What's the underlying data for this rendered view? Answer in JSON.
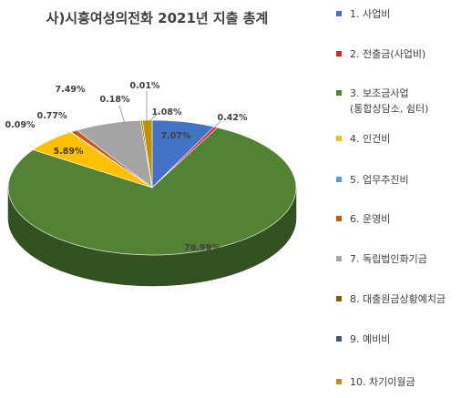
{
  "chart_data": {
    "type": "pie",
    "title": "사)시흥여성의전화 2021년 지출 총계",
    "three_d": true,
    "legend_position": "right",
    "slices": [
      {
        "label": "1. 사업비",
        "value": 7.07,
        "display": "7.07%",
        "color": "#4472C4"
      },
      {
        "label": "2. 전출금(사업비)",
        "value": 0.42,
        "display": "0.42%",
        "color": "#D9262B"
      },
      {
        "label": "3. 보조금사업\n(통합상담소, 쉼터)",
        "value": 76.99,
        "display": "76.99%",
        "color": "#548235"
      },
      {
        "label": "4. 인건비",
        "value": 5.89,
        "display": "5.89%",
        "color": "#FFC000"
      },
      {
        "label": "5. 업무추진비",
        "value": 0.09,
        "display": "0.09%",
        "color": "#5B9BD5"
      },
      {
        "label": "6. 운영비",
        "value": 0.77,
        "display": "0.77%",
        "color": "#C55A11"
      },
      {
        "label": "7. 독립법인화기금",
        "value": 7.49,
        "display": "7.49%",
        "color": "#A5A5A5"
      },
      {
        "label": "8. 대출원금상황예치금",
        "value": 0.18,
        "display": "0.18%",
        "color": "#7F6000"
      },
      {
        "label": "9. 예비비",
        "value": 0.01,
        "display": "0.01%",
        "color": "#44546A"
      },
      {
        "label": "10. 차기이월금",
        "value": 1.08,
        "display": "1.08%",
        "color": "#BF9000"
      }
    ]
  }
}
